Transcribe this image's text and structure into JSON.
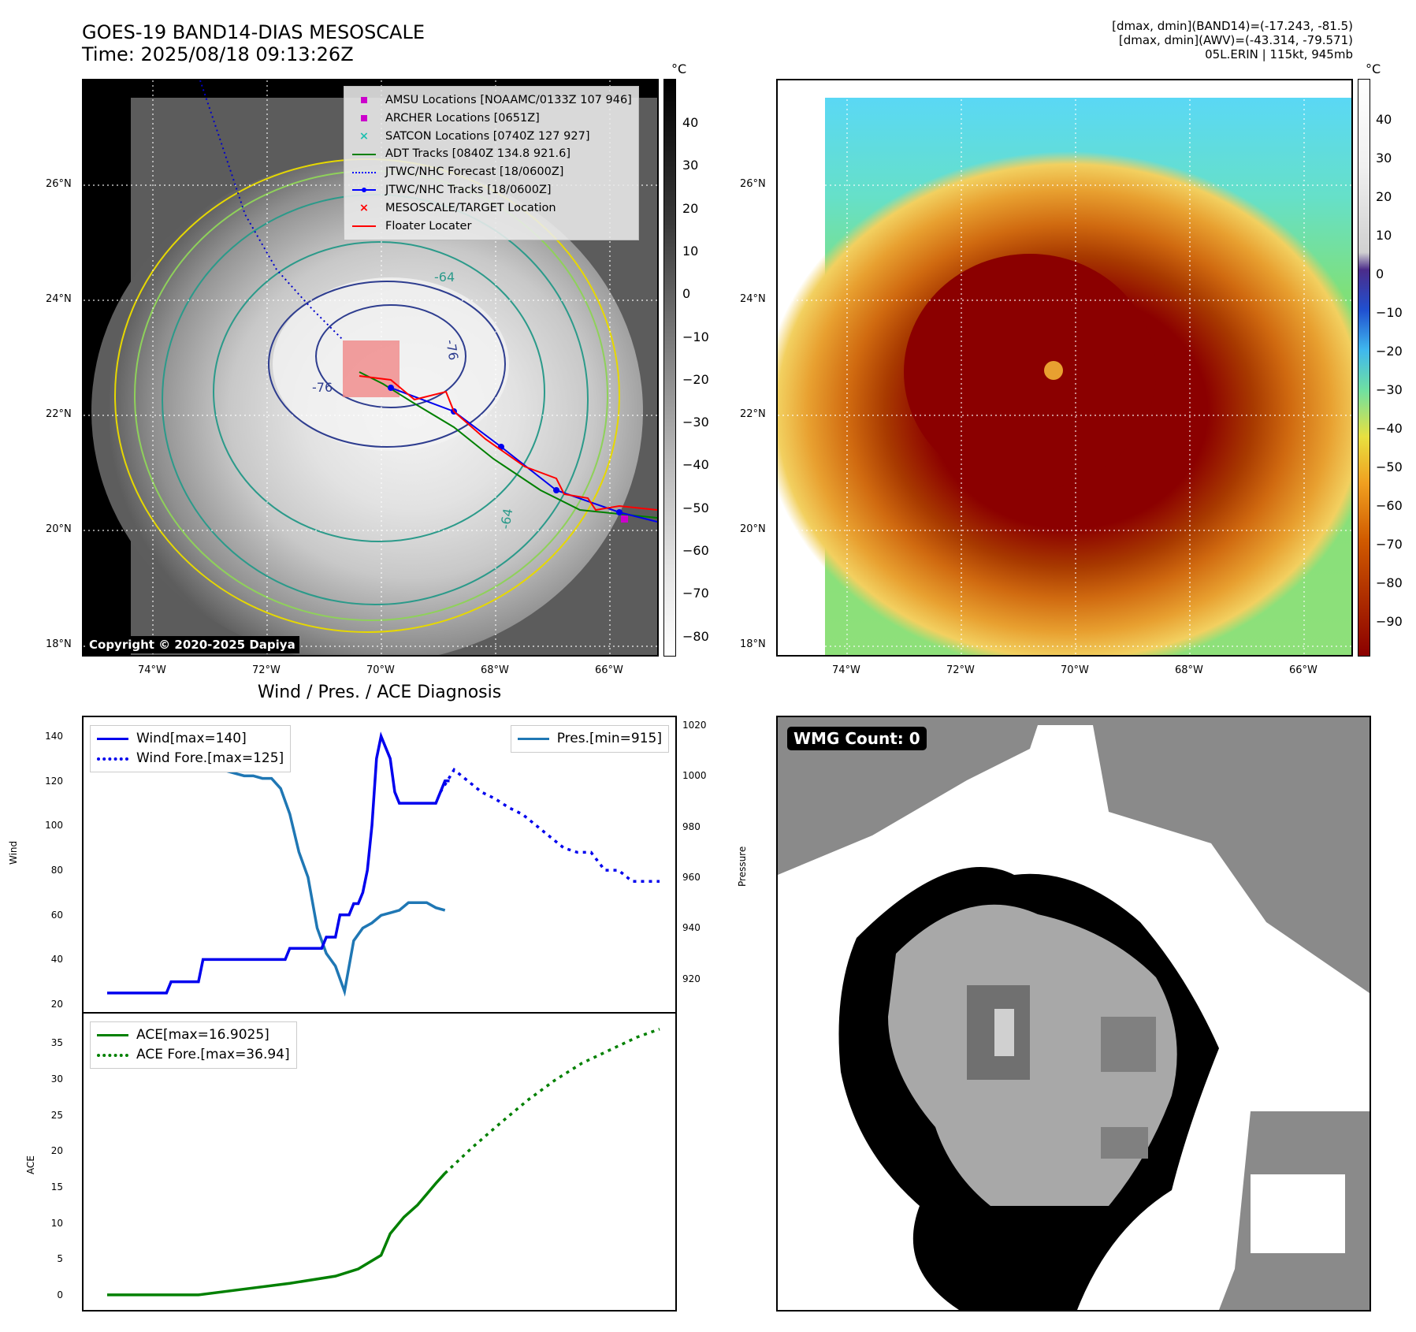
{
  "header": {
    "title": "GOES-19 BAND14-DIAS MESOSCALE",
    "time": "Time: 2025/08/18 09:13:26Z",
    "stats_band14": "[dmax, dmin](BAND14)=(-17.243, -81.5)",
    "stats_awv": "[dmax, dmin](AWV)=(-43.314, -79.571)",
    "storm": "05L.ERIN | 115kt, 945mb"
  },
  "map": {
    "lat_labels": [
      "26°N",
      "24°N",
      "22°N",
      "20°N",
      "18°N"
    ],
    "lon_labels": [
      "74°W",
      "72°W",
      "70°W",
      "68°W",
      "66°W"
    ],
    "contour_labels": [
      "-64",
      "-76",
      "-76",
      "-64"
    ],
    "copyright": "Copyright © 2020-2025 Dapiya",
    "legend": [
      {
        "label": "AMSU Locations [NOAAMC/0133Z 107 946]",
        "color": "#cc00cc",
        "marker": "square"
      },
      {
        "label": "ARCHER Locations [0651Z]",
        "color": "#cc00cc",
        "marker": "square"
      },
      {
        "label": "SATCON Locations [0740Z 127 927]",
        "color": "#20c0b0",
        "marker": "x"
      },
      {
        "label": "ADT Tracks [0840Z 134.8 921.6]",
        "color": "#008000",
        "marker": "line"
      },
      {
        "label": "JTWC/NHC Forecast [18/0600Z]",
        "color": "#0000ff",
        "marker": "dotted"
      },
      {
        "label": "JTWC/NHC Tracks [18/0600Z]",
        "color": "#0000ff",
        "marker": "line-dot"
      },
      {
        "label": "MESOSCALE/TARGET Location",
        "color": "#ff0000",
        "marker": "x"
      },
      {
        "label": "Floater Locater",
        "color": "#ff0000",
        "marker": "line"
      }
    ]
  },
  "colorbar_left": {
    "unit": "°C",
    "ticks": [
      "40",
      "30",
      "20",
      "10",
      "0",
      "−10",
      "−20",
      "−30",
      "−40",
      "−50",
      "−60",
      "−70",
      "−80"
    ]
  },
  "colorbar_right": {
    "unit": "°C",
    "ticks": [
      "40",
      "30",
      "20",
      "10",
      "0",
      "−10",
      "−20",
      "−30",
      "−40",
      "−50",
      "−60",
      "−70",
      "−80",
      "−90"
    ]
  },
  "diagnosis_title": "Wind / Pres. / ACE Diagnosis",
  "wmg_label": "WMG Count: 0",
  "colors": {
    "wind": "#0000ee",
    "pressure": "#1f77b4",
    "ace": "#008000",
    "track_red": "#ff0000"
  },
  "chart_data": [
    {
      "type": "line",
      "title": "Wind / Pres. / ACE Diagnosis",
      "ylabel": "Wind",
      "ylabel_right": "Pressure",
      "ylim": [
        20,
        145
      ],
      "y2lim": [
        910,
        1020
      ],
      "yticks": [
        "140",
        "120",
        "100",
        "80",
        "60",
        "40",
        "20"
      ],
      "y2ticks": [
        "1020",
        "1000",
        "980",
        "960",
        "940",
        "920"
      ],
      "series": [
        {
          "name": "Wind[max=140]",
          "style": "solid",
          "axis": "left",
          "x": [
            0,
            1,
            2,
            3,
            4,
            5,
            6,
            7,
            8,
            9,
            10,
            11,
            12,
            13,
            14,
            15,
            16,
            17,
            18,
            19,
            20,
            21,
            22,
            23,
            24,
            25,
            26,
            27,
            28,
            29,
            30,
            31,
            32,
            33,
            34,
            35,
            36,
            37,
            38,
            39,
            40,
            41,
            42,
            43,
            44,
            45,
            46,
            47,
            48,
            49,
            50,
            51,
            52,
            53,
            54,
            55,
            56,
            57,
            58,
            59,
            60,
            61,
            62,
            63,
            64,
            65,
            66,
            67,
            68,
            69,
            70,
            71,
            72,
            73,
            74,
            75
          ],
          "values": [
            25,
            25,
            25,
            25,
            25,
            25,
            25,
            25,
            25,
            25,
            25,
            25,
            25,
            25,
            30,
            30,
            30,
            30,
            30,
            30,
            30,
            40,
            40,
            40,
            40,
            40,
            40,
            40,
            40,
            40,
            40,
            40,
            40,
            40,
            40,
            40,
            40,
            40,
            40,
            40,
            45,
            45,
            45,
            45,
            45,
            45,
            45,
            45,
            50,
            50,
            50,
            60,
            60,
            60,
            65,
            65,
            70,
            80,
            100,
            130,
            140,
            135,
            130,
            115,
            110,
            110,
            110,
            110,
            110,
            110,
            110,
            110,
            110,
            115,
            120,
            120
          ]
        },
        {
          "name": "Wind Fore.[max=125]",
          "style": "dotted",
          "axis": "left",
          "x": [
            73,
            76,
            79,
            82,
            85,
            88,
            91,
            94,
            97,
            100,
            103,
            106,
            109,
            112,
            115,
            118,
            121
          ],
          "values": [
            115,
            125,
            120,
            115,
            112,
            108,
            105,
            100,
            95,
            90,
            88,
            88,
            80,
            80,
            75,
            75,
            75
          ]
        },
        {
          "name": "Pres.[min=915]",
          "style": "solid",
          "axis": "right",
          "x": [
            0,
            2,
            4,
            6,
            8,
            10,
            12,
            14,
            16,
            18,
            20,
            22,
            24,
            26,
            28,
            30,
            32,
            34,
            36,
            38,
            40,
            42,
            44,
            46,
            48,
            50,
            52,
            54,
            56,
            58,
            60,
            62,
            64,
            66,
            68,
            70,
            72,
            74
          ],
          "values": [
            1008,
            1008,
            1006,
            1005,
            1005,
            1004,
            1004,
            1004,
            1004,
            1003,
            1003,
            1003,
            1002,
            1002,
            1001,
            1000,
            1000,
            999,
            999,
            995,
            985,
            970,
            960,
            940,
            930,
            925,
            915,
            935,
            940,
            942,
            945,
            946,
            947,
            950,
            950,
            950,
            948,
            947
          ]
        }
      ]
    },
    {
      "type": "line",
      "ylabel": "ACE",
      "ylim": [
        -1,
        38
      ],
      "yticks": [
        "35",
        "30",
        "25",
        "20",
        "15",
        "10",
        "5",
        "0"
      ],
      "series": [
        {
          "name": "ACE[max=16.9025]",
          "style": "solid",
          "x": [
            0,
            10,
            20,
            30,
            40,
            50,
            55,
            60,
            62,
            65,
            68,
            70,
            72,
            74
          ],
          "values": [
            0,
            0,
            0,
            0.8,
            1.6,
            2.6,
            3.6,
            5.5,
            8.5,
            10.8,
            12.5,
            14,
            15.5,
            16.9
          ]
        },
        {
          "name": "ACE Fore.[max=36.94]",
          "style": "dotted",
          "x": [
            74,
            80,
            86,
            92,
            98,
            104,
            110,
            116,
            121
          ],
          "values": [
            16.9,
            20.5,
            23.8,
            27,
            29.8,
            32.2,
            34,
            35.8,
            36.94
          ]
        }
      ]
    }
  ]
}
